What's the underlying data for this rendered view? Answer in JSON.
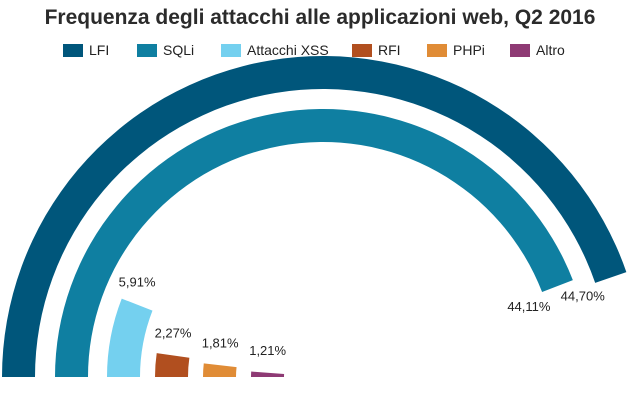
{
  "title": "Frequenza degli attacchi alle applicazioni web, Q2 2016",
  "chart_data": {
    "type": "radial-bar",
    "title": "Frequenza degli attacchi alle applicazioni web, Q2 2016",
    "max_value": 50,
    "series": [
      {
        "name": "LFI",
        "value": 44.7,
        "label": "44,70%",
        "color": "#00567b"
      },
      {
        "name": "SQLi",
        "value": 44.11,
        "label": "44,11%",
        "color": "#0f7fa1"
      },
      {
        "name": "Attacchi XSS",
        "value": 5.91,
        "label": "5,91%",
        "color": "#74d0ef"
      },
      {
        "name": "RFI",
        "value": 2.27,
        "label": "2,27%",
        "color": "#b14f1f"
      },
      {
        "name": "PHPi",
        "value": 1.81,
        "label": "1,81%",
        "color": "#e08c36"
      },
      {
        "name": "Altro",
        "value": 1.21,
        "label": "1,21%",
        "color": "#8e3a74"
      }
    ],
    "legend": "top"
  }
}
